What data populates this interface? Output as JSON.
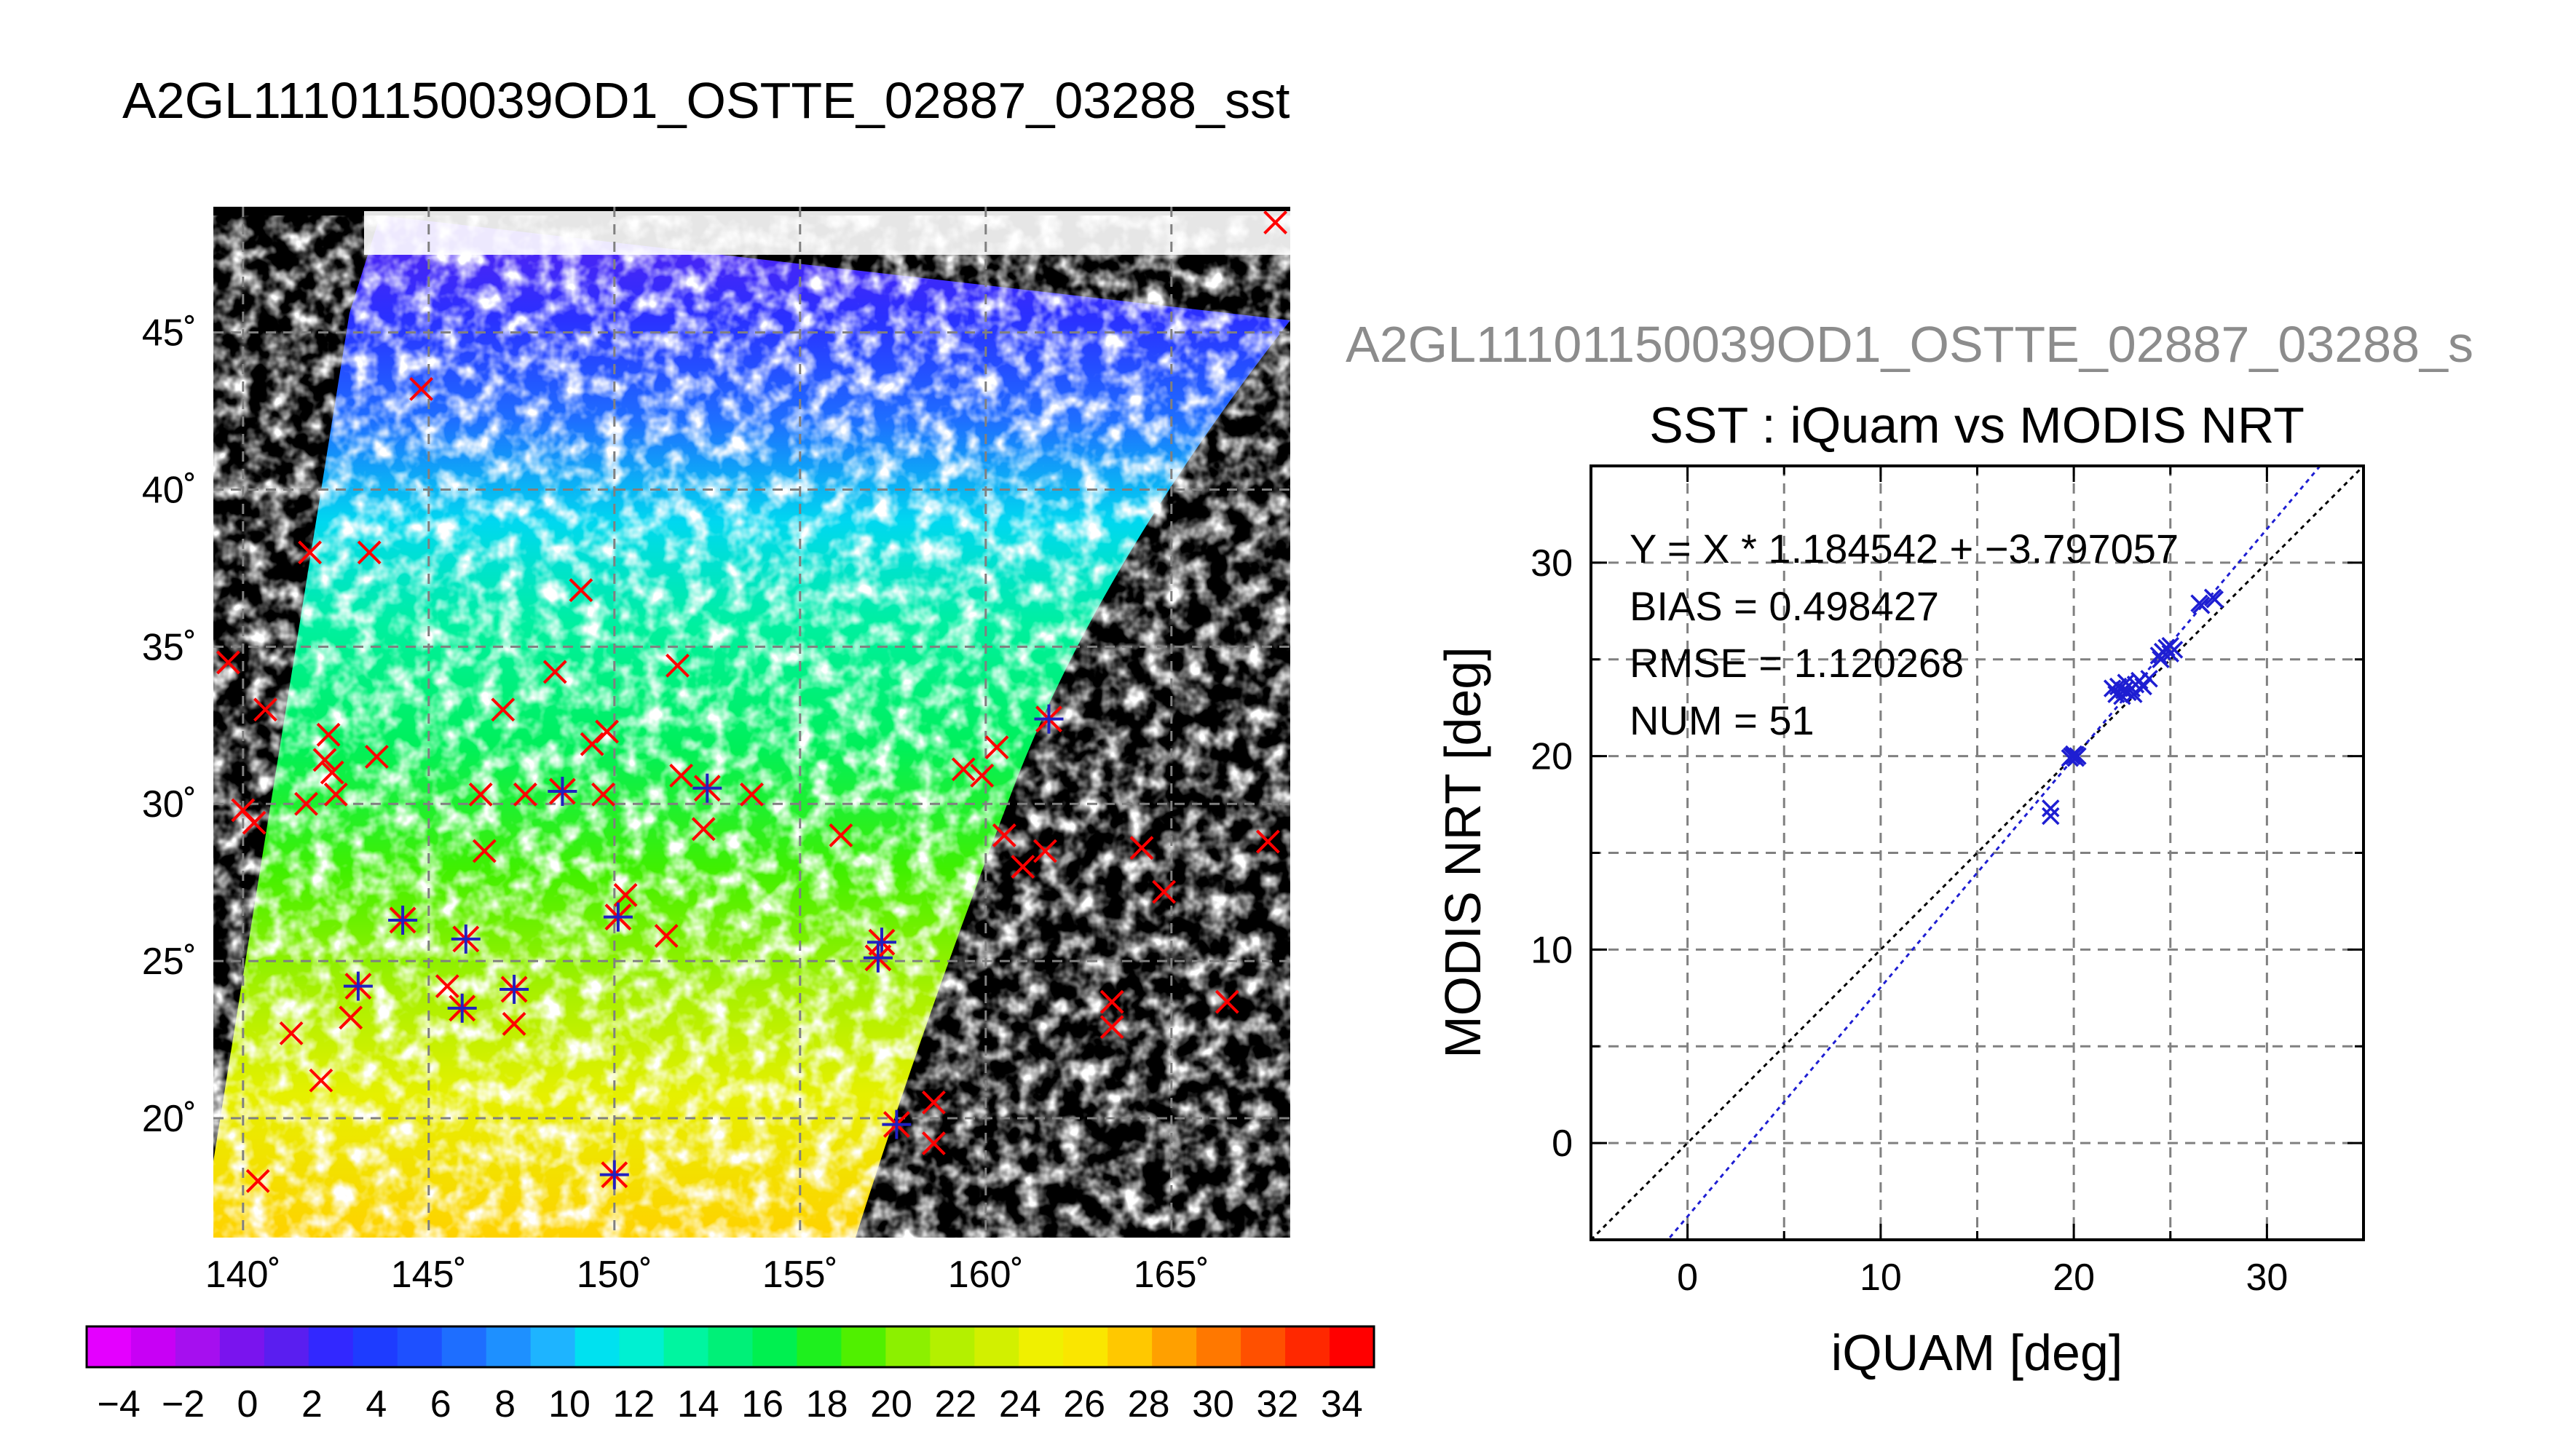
{
  "page": {
    "main_title": "A2GL11101150039OD1_OSTTE_02887_03288_sst",
    "gray_title": "A2GL11101150039OD1_OSTTE_02887_03288_s"
  },
  "chart_data": [
    {
      "type": "heatmap",
      "description": "map",
      "x_ticks": [
        "140˚",
        "145˚",
        "150˚",
        "155˚",
        "160˚",
        "165˚"
      ],
      "x_tick_values": [
        140,
        145,
        150,
        155,
        160,
        165
      ],
      "y_ticks": [
        "20˚",
        "25˚",
        "30˚",
        "35˚",
        "40˚",
        "45˚"
      ],
      "y_tick_values": [
        20,
        25,
        30,
        35,
        40,
        45
      ],
      "xlim": [
        139.2,
        168.2
      ],
      "ylim": [
        16.2,
        49.0
      ],
      "grid": true,
      "colorbar": {
        "ticks": [
          "−4",
          "−2",
          "0",
          "2",
          "4",
          "6",
          "8",
          "10",
          "12",
          "14",
          "16",
          "18",
          "20",
          "22",
          "24",
          "26",
          "28",
          "30",
          "32",
          "34"
        ],
        "tick_values": [
          -4,
          -2,
          0,
          2,
          4,
          6,
          8,
          10,
          12,
          14,
          16,
          18,
          20,
          22,
          24,
          26,
          28,
          30,
          32,
          34
        ],
        "range": [
          -5,
          35
        ],
        "colors": [
          "#e400ff",
          "#c800f5",
          "#a60fef",
          "#7a14ee",
          "#5a1ef0",
          "#3228ff",
          "#1e3cff",
          "#1e50ff",
          "#1e6eff",
          "#1e90ff",
          "#1eb4ff",
          "#00e1f0",
          "#00f0d2",
          "#00f5a0",
          "#00f078",
          "#00f050",
          "#1ef01e",
          "#50f000",
          "#8cf000",
          "#b4f000",
          "#d2f000",
          "#f0f000",
          "#fae600",
          "#ffc800",
          "#ffa000",
          "#ff7800",
          "#ff5000",
          "#ff2800",
          "#ff0000"
        ]
      },
      "points_x_only": [
        [
          140.4,
          18.0
        ],
        [
          139.6,
          34.5
        ],
        [
          140.0,
          29.8
        ],
        [
          140.3,
          29.4
        ],
        [
          140.6,
          33.0
        ],
        [
          141.3,
          22.7
        ],
        [
          141.7,
          30.0
        ],
        [
          142.1,
          21.2
        ],
        [
          142.2,
          31.4
        ],
        [
          142.3,
          32.2
        ],
        [
          142.4,
          31.0
        ],
        [
          142.5,
          30.3
        ],
        [
          141.8,
          38.0
        ],
        [
          143.4,
          38.0
        ],
        [
          143.6,
          31.5
        ],
        [
          147.0,
          33.0
        ],
        [
          146.5,
          28.5
        ],
        [
          146.4,
          30.3
        ],
        [
          147.3,
          23.0
        ],
        [
          148.4,
          34.2
        ],
        [
          149.1,
          36.8
        ],
        [
          149.4,
          31.9
        ],
        [
          149.8,
          32.3
        ],
        [
          150.3,
          27.1
        ],
        [
          150.1,
          26.4
        ],
        [
          151.4,
          25.8
        ],
        [
          151.7,
          34.4
        ],
        [
          152.4,
          29.2
        ],
        [
          153.7,
          30.3
        ],
        [
          156.1,
          29.0
        ],
        [
          158.6,
          19.2
        ],
        [
          158.6,
          20.5
        ],
        [
          159.4,
          31.1
        ],
        [
          159.9,
          30.9
        ],
        [
          160.3,
          31.8
        ],
        [
          160.5,
          29.0
        ],
        [
          161.0,
          28.0
        ],
        [
          161.6,
          28.5
        ],
        [
          163.4,
          23.7
        ],
        [
          163.4,
          22.9
        ],
        [
          164.2,
          28.6
        ],
        [
          164.8,
          27.2
        ],
        [
          166.5,
          23.7
        ],
        [
          167.6,
          28.8
        ],
        [
          167.8,
          48.5
        ],
        [
          144.8,
          43.2
        ],
        [
          147.6,
          30.3
        ],
        [
          151.8,
          30.9
        ],
        [
          149.7,
          30.3
        ],
        [
          145.5,
          24.2
        ],
        [
          142.9,
          23.2
        ]
      ],
      "points_star": [
        [
          143.1,
          24.2
        ],
        [
          144.3,
          26.3
        ],
        [
          145.9,
          23.5
        ],
        [
          146.0,
          25.7
        ],
        [
          147.3,
          24.1
        ],
        [
          148.6,
          30.4
        ],
        [
          150.1,
          26.4
        ],
        [
          150.0,
          18.2
        ],
        [
          152.5,
          30.5
        ],
        [
          157.2,
          25.6
        ],
        [
          157.1,
          25.1
        ],
        [
          157.6,
          19.8
        ],
        [
          161.7,
          32.7
        ]
      ]
    },
    {
      "type": "scatter",
      "title": "SST : iQuam vs MODIS NRT",
      "xlabel": "iQUAM [deg]",
      "ylabel": "MODIS NRT [deg]",
      "xlim": [
        -5,
        35
      ],
      "ylim": [
        -5,
        35
      ],
      "x_ticks": [
        "0",
        "10",
        "20",
        "30"
      ],
      "x_tick_values": [
        0,
        10,
        20,
        30
      ],
      "y_ticks": [
        "0",
        "10",
        "20",
        "30"
      ],
      "y_tick_values": [
        0,
        10,
        20,
        30
      ],
      "grid": true,
      "stats": {
        "fit": "Y = X * 1.184542 + −3.797057",
        "bias": "BIAS = 0.498427",
        "rmse": "RMSE = 1.120268",
        "num": "NUM = 51"
      },
      "fit_line": {
        "slope": 1.184542,
        "intercept": -3.797057
      },
      "identity_line": {
        "slope": 1,
        "intercept": 0
      },
      "points": [
        [
          18.8,
          16.9
        ],
        [
          18.8,
          17.3
        ],
        [
          19.9,
          20.0
        ],
        [
          20.0,
          20.0
        ],
        [
          20.1,
          19.9
        ],
        [
          20.0,
          20.1
        ],
        [
          19.8,
          19.9
        ],
        [
          20.2,
          20.0
        ],
        [
          22.0,
          23.5
        ],
        [
          22.2,
          23.2
        ],
        [
          22.3,
          23.6
        ],
        [
          22.5,
          23.1
        ],
        [
          22.6,
          23.4
        ],
        [
          22.7,
          23.8
        ],
        [
          22.8,
          23.3
        ],
        [
          23.0,
          23.5
        ],
        [
          23.1,
          23.2
        ],
        [
          23.2,
          23.7
        ],
        [
          23.4,
          23.9
        ],
        [
          23.6,
          23.6
        ],
        [
          23.9,
          24.0
        ],
        [
          24.4,
          25.2
        ],
        [
          24.5,
          25.0
        ],
        [
          24.6,
          25.4
        ],
        [
          24.8,
          25.6
        ],
        [
          25.0,
          25.3
        ],
        [
          25.0,
          25.7
        ],
        [
          25.2,
          25.5
        ],
        [
          26.5,
          27.9
        ],
        [
          27.2,
          28.2
        ],
        [
          27.3,
          28.1
        ],
        [
          26.6,
          27.8
        ]
      ]
    }
  ]
}
